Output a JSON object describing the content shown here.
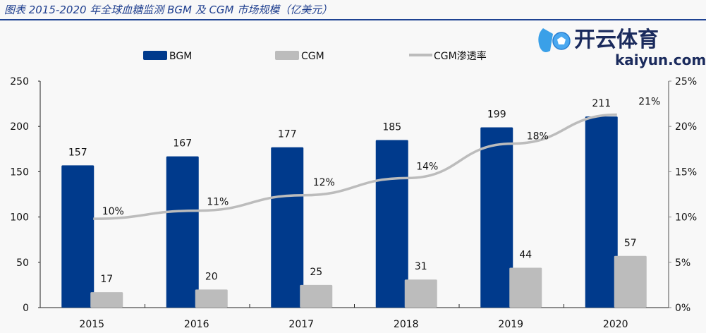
{
  "title": "图表 2015-2020 年全球血糖监测 BGM 及 CGM 市场规模（亿美元）",
  "colors": {
    "bgm": "#003a8c",
    "cgm": "#bcbcbc",
    "line": "#bcbcbc",
    "title": "#1f3f8f"
  },
  "watermark": {
    "cn": "开云体育",
    "en": "kaiyun.com"
  },
  "chart_data": {
    "type": "bar",
    "title": "图表 2015-2020 年全球血糖监测 BGM 及 CGM 市场规模（亿美元）",
    "categories": [
      "2015",
      "2016",
      "2017",
      "2018",
      "2019",
      "2020"
    ],
    "series": [
      {
        "name": "BGM",
        "type": "bar",
        "axis": "left",
        "values": [
          157,
          167,
          177,
          185,
          199,
          211
        ],
        "labels": [
          "157",
          "167",
          "177",
          "185",
          "199",
          "211"
        ]
      },
      {
        "name": "CGM",
        "type": "bar",
        "axis": "left",
        "values": [
          17,
          20,
          25,
          31,
          44,
          57
        ],
        "labels": [
          "17",
          "20",
          "25",
          "31",
          "44",
          "57"
        ]
      },
      {
        "name": "CGM渗透率",
        "type": "line",
        "axis": "right",
        "values": [
          9.8,
          10.7,
          12.4,
          14.3,
          18.1,
          21.3
        ],
        "labels": [
          "10%",
          "11%",
          "12%",
          "14%",
          "18%",
          "21%"
        ]
      }
    ],
    "y_left": {
      "range": [
        0,
        250
      ],
      "ticks": [
        "0",
        "50",
        "100",
        "150",
        "200",
        "250"
      ]
    },
    "y_right": {
      "range": [
        0,
        25
      ],
      "ticks": [
        "0%",
        "5%",
        "10%",
        "15%",
        "20%",
        "25%"
      ]
    },
    "legend": {
      "position": "top",
      "items": [
        "BGM",
        "CGM",
        "CGM渗透率"
      ]
    },
    "grid": false
  }
}
